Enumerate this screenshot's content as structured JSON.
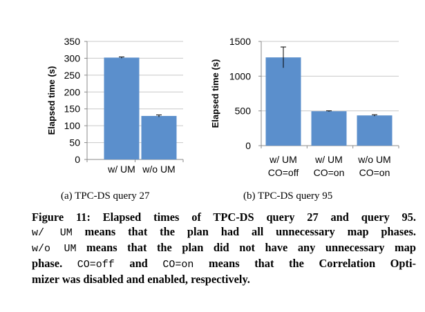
{
  "chart_data": [
    {
      "type": "bar",
      "ylabel": "Elapsed time (s)",
      "ylim": [
        0,
        350
      ],
      "yticks": [
        0,
        50,
        100,
        150,
        200,
        250,
        300,
        350
      ],
      "categories": [
        [
          "w/ UM"
        ],
        [
          "w/o UM"
        ]
      ],
      "values": [
        302,
        129
      ],
      "errors": [
        2,
        3
      ],
      "grid": true,
      "bar_color": "#5b8fcc",
      "subcaption": "(a) TPC-DS query 27"
    },
    {
      "type": "bar",
      "ylabel": "Elapsed time (s)",
      "ylim": [
        0,
        1500
      ],
      "yticks": [
        0,
        500,
        1000,
        1500
      ],
      "categories": [
        [
          "w/ UM",
          "CO=off"
        ],
        [
          "w/ UM",
          "CO=on"
        ],
        [
          "w/o UM",
          "CO=on"
        ]
      ],
      "values": [
        1270,
        495,
        435
      ],
      "errors": [
        150,
        6,
        10
      ],
      "grid": true,
      "bar_color": "#5b8fcc",
      "subcaption": "(b) TPC-DS query 95"
    }
  ],
  "caption": {
    "lines": [
      [
        {
          "t": "Figure 11: Elapsed times of TPC-DS query 27 and query 95."
        }
      ],
      [
        {
          "t": "w/ UM",
          "code": true
        },
        {
          "t": " means that the plan had all unnecessary map phases."
        }
      ],
      [
        {
          "t": "w/o UM",
          "code": true
        },
        {
          "t": " means that the plan did not have any unnecessary map"
        }
      ],
      [
        {
          "t": "phase. "
        },
        {
          "t": "CO=off",
          "code": true
        },
        {
          "t": " and "
        },
        {
          "t": "CO=on",
          "code": true
        },
        {
          "t": " means that the Correlation Opti-"
        }
      ],
      [
        {
          "t": "mizer was disabled and enabled, respectively."
        }
      ]
    ]
  }
}
